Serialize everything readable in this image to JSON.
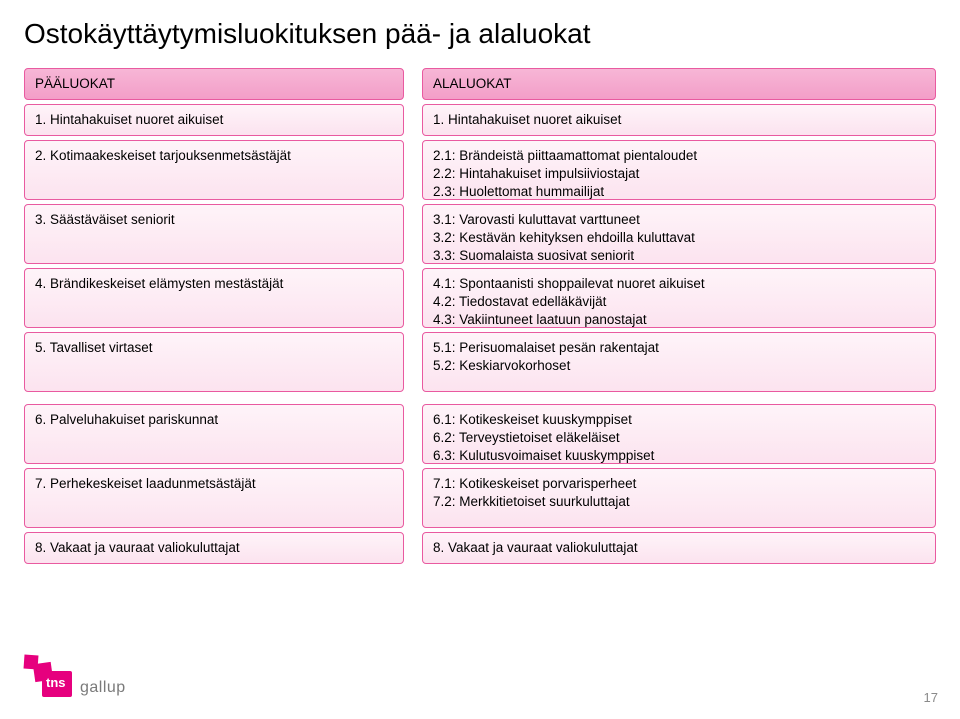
{
  "title": "Ostokäyttäytymisluokituksen pää- ja alaluokat",
  "headers": {
    "left": "PÄÄLUOKAT",
    "right": "ALALUOKAT"
  },
  "rows": [
    {
      "left": "1. Hintahakuiset nuoret aikuiset",
      "right": [
        "1. Hintahakuiset nuoret aikuiset"
      ],
      "h": "h1"
    },
    {
      "left": "2. Kotimaakeskeiset tarjouksenmetsästäjät",
      "right": [
        "2.1: Brändeistä piittaamattomat pientaloudet",
        "2.2: Hintahakuiset impulsiiviostajat",
        "2.3: Huolettomat hummailijat"
      ],
      "h": "h3"
    },
    {
      "left": "3. Säästäväiset seniorit",
      "right": [
        "3.1: Varovasti kuluttavat varttuneet",
        "3.2: Kestävän kehityksen ehdoilla kuluttavat",
        "3.3: Suomalaista suosivat seniorit"
      ],
      "h": "h3"
    },
    {
      "left": "4. Brändikeskeiset elämysten mestästäjät",
      "right": [
        "4.1: Spontaanisti shoppailevat nuoret aikuiset",
        "4.2: Tiedostavat edelläkävijät",
        "4.3: Vakiintuneet laatuun panostajat"
      ],
      "h": "h3"
    },
    {
      "left": "5. Tavalliset virtaset",
      "right": [
        "5.1: Perisuomalaiset pesän rakentajat",
        "5.2: Keskiarvokorhoset"
      ],
      "h": "h3"
    },
    {
      "left": "6. Palveluhakuiset pariskunnat",
      "right": [
        "6.1: Kotikeskeiset kuuskymppiset",
        "6.2: Terveystietoiset eläkeläiset",
        "6.3: Kulutusvoimaiset kuuskymppiset"
      ],
      "h": "h3",
      "gapBefore": true
    },
    {
      "left": "7. Perhekeskeiset laadunmetsästäjät",
      "right": [
        "7.1: Kotikeskeiset porvarisperheet",
        "7.2: Merkkitietoiset suurkuluttajat"
      ],
      "h": "h3"
    },
    {
      "left": "8. Vakaat ja vauraat valiokuluttajat",
      "right": [
        "8. Vakaat ja vauraat valiokuluttajat"
      ],
      "h": "h1"
    }
  ],
  "logo": {
    "tns": "tns",
    "gallup": "gallup"
  },
  "pageNumber": "17",
  "colors": {
    "border": "#e95aa0",
    "headerGradTop": "#f7b6d6",
    "headerGradBot": "#f39ec8",
    "cellGradTop": "#fef4f9",
    "cellGradBot": "#fce3ef",
    "brand": "#e6007e"
  }
}
